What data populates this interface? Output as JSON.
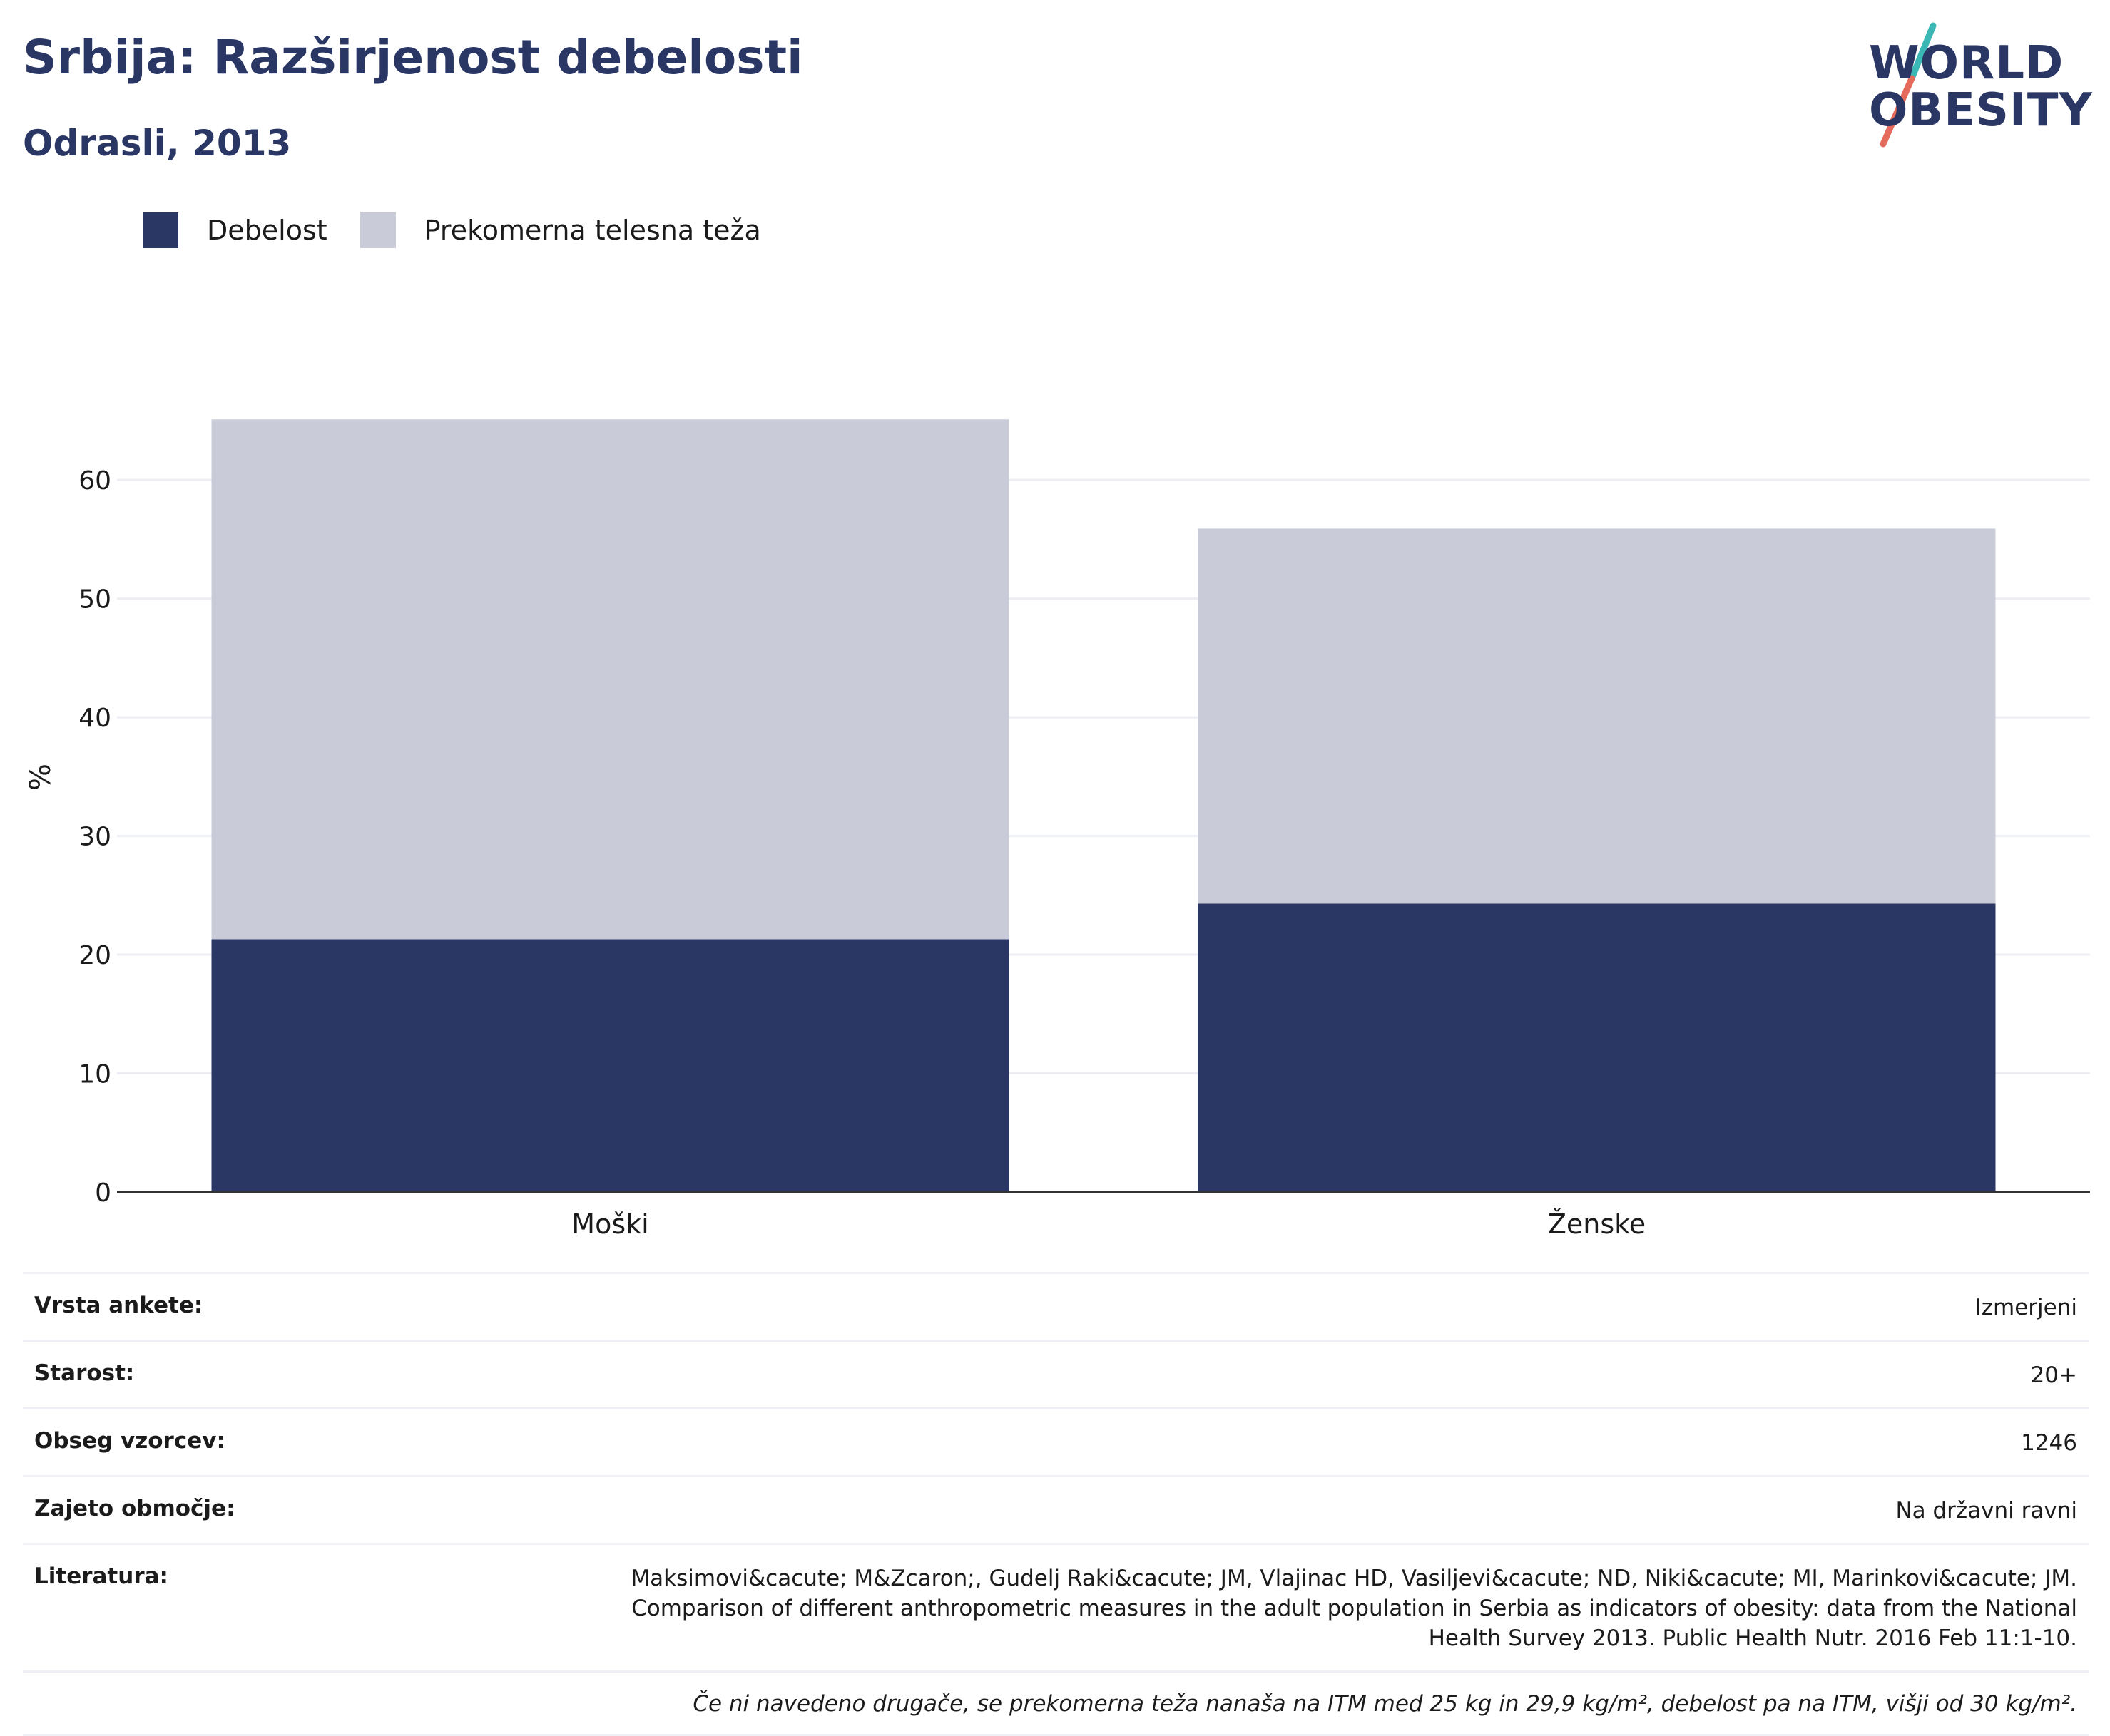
{
  "header": {
    "title": "Srbija: Razširjenost debelosti",
    "subtitle": "Odrasli, 2013"
  },
  "logo": {
    "line1": "WORLD",
    "line2": "OBESITY"
  },
  "colors": {
    "obesity": "#2a3663",
    "overweight": "#c9ccd8",
    "gridline": "#eceef3",
    "axis": "#333333",
    "text": "#1b1b1b",
    "brand": "#2a3663",
    "logo_teal": "#3bb8b5",
    "logo_coral": "#e46a5c"
  },
  "chart_data": {
    "type": "bar",
    "stacked": true,
    "categories": [
      "Moški",
      "Ženske"
    ],
    "series": [
      {
        "name": "Debelost",
        "values": [
          21.3,
          24.3
        ]
      },
      {
        "name": "Prekomerna telesna teža",
        "values": [
          43.8,
          31.6
        ]
      }
    ],
    "ylabel": "%",
    "ylim": [
      0,
      68
    ],
    "yticks": [
      "0",
      "10",
      "20",
      "30",
      "40",
      "50",
      "60"
    ],
    "grid": true,
    "legend": "top-left"
  },
  "info": {
    "rows": [
      {
        "key": "Vrsta ankete:",
        "value": "Izmerjeni"
      },
      {
        "key": "Starost:",
        "value": "20+"
      },
      {
        "key": "Obseg vzorcev:",
        "value": "1246"
      },
      {
        "key": "Zajeto območje:",
        "value": "Na državni ravni"
      },
      {
        "key": "Literatura:",
        "value": "Maksimovi&cacute; M&Zcaron;, Gudelj Raki&cacute; JM, Vlajinac HD, Vasiljevi&cacute; ND, Niki&cacute; MI, Marinkovi&cacute; JM. Comparison of different anthropometric measures in the adult population in Serbia as indicators of obesity: data from the National Health Survey 2013. Public Health Nutr. 2016 Feb 11:1-10."
      }
    ],
    "note": "Če ni navedeno drugače, se prekomerna teža nanaša na ITM med 25 kg in 29,9 kg/m², debelost pa na ITM, višji od 30 kg/m²."
  }
}
